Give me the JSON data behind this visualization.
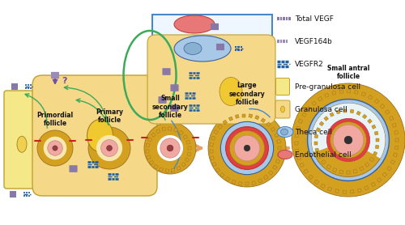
{
  "background_color": "#ffffff",
  "follicle_labels": [
    "Primordial\nfollicle",
    "Primary\nfollicle",
    "Small\nsecondary\nfollicle",
    "Large\nsecondary\nfollicle",
    "Small antral\nfollicle"
  ],
  "legend_items": [
    {
      "label": "Total VEGF",
      "type": "vegf_total"
    },
    {
      "label": "VEGF164b",
      "type": "vegf164b"
    },
    {
      "label": "VEGFR2",
      "type": "vegfr2"
    },
    {
      "label": "Pre-granulosa cell",
      "type": "pre_gran"
    },
    {
      "label": "Granulosa cell",
      "type": "gran"
    },
    {
      "label": "Theca cell",
      "type": "theca"
    },
    {
      "label": "Endothelial cell",
      "type": "endo"
    }
  ],
  "arrow_color": "#E8A060",
  "cell_yellow": "#F5D888",
  "cell_yellow_pre": "#F5E888",
  "cell_blue": "#A8C8E8",
  "cell_red": "#E87878",
  "gran_dot_color": "#D4A030",
  "oocyte_color": "#F0A8A0",
  "green_c": "#3BAA5A",
  "blue_line": "#4888C8",
  "vegf_purple": "#8878A8",
  "vegf164b_color": "#9B8BBB",
  "vegfr2_color": "#2060A0",
  "red_ring_color": "#E04040"
}
